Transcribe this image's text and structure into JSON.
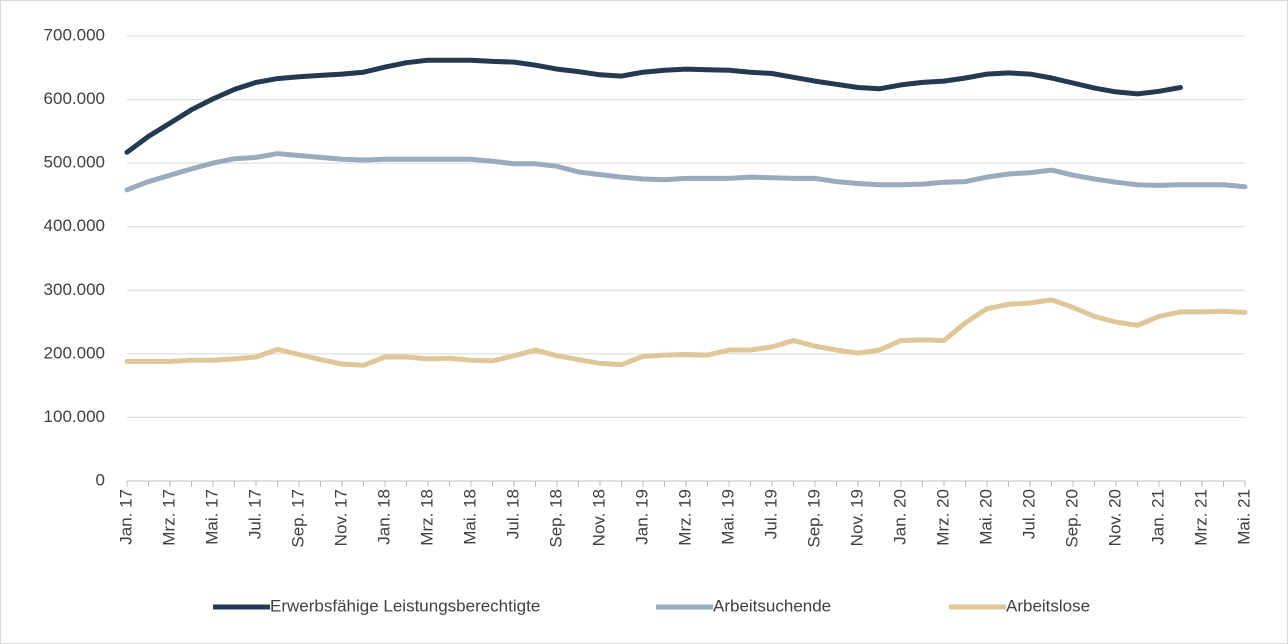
{
  "chart_data": {
    "type": "line",
    "categories": [
      "Jan. 17",
      null,
      "Mrz. 17",
      null,
      "Mai. 17",
      null,
      "Jul. 17",
      null,
      "Sep. 17",
      null,
      "Nov. 17",
      null,
      "Jan. 18",
      null,
      "Mrz. 18",
      null,
      "Mai. 18",
      null,
      "Jul. 18",
      null,
      "Sep. 18",
      null,
      "Nov. 18",
      null,
      "Jan. 19",
      null,
      "Mrz. 19",
      null,
      "Mai. 19",
      null,
      "Jul. 19",
      null,
      "Sep. 19",
      null,
      "Nov. 19",
      null,
      "Jan. 20",
      null,
      "Mrz. 20",
      null,
      "Mai. 20",
      null,
      "Jul. 20",
      null,
      "Sep. 20",
      null,
      "Nov. 20",
      null,
      "Jan. 21",
      null,
      "Mrz. 21",
      null,
      "Mai. 21"
    ],
    "series": [
      {
        "name": "Erwerbsfähige Leistungsberechtigte",
        "color": "#243a52",
        "values": [
          517000,
          542000,
          563000,
          584000,
          601000,
          616000,
          627000,
          633000,
          636000,
          638000,
          640000,
          643000,
          651000,
          658000,
          662000,
          662000,
          662000,
          660000,
          659000,
          654000,
          648000,
          644000,
          639000,
          637000,
          643000,
          646000,
          648000,
          647000,
          646000,
          643000,
          641000,
          635000,
          629000,
          624000,
          619000,
          617000,
          623000,
          627000,
          629000,
          634000,
          640000,
          642000,
          640000,
          634000,
          626000,
          618000,
          612000,
          609000,
          613000,
          619000,
          null,
          null,
          null
        ]
      },
      {
        "name": "Arbeitsuchende",
        "color": "#9aabbd",
        "values": [
          458000,
          471000,
          481000,
          491000,
          500000,
          507000,
          509000,
          515000,
          512000,
          509000,
          506000,
          505000,
          506000,
          506000,
          506000,
          506000,
          506000,
          503000,
          499000,
          499000,
          495000,
          486000,
          482000,
          478000,
          475000,
          474000,
          476000,
          476000,
          476000,
          478000,
          477000,
          476000,
          476000,
          471000,
          468000,
          466000,
          466000,
          467000,
          470000,
          471000,
          478000,
          483000,
          485000,
          489000,
          481000,
          475000,
          470000,
          466000,
          465000,
          466000,
          466000,
          466000,
          463000
        ]
      },
      {
        "name": "Arbeitslose",
        "color": "#e0c79a",
        "values": [
          188000,
          188000,
          188000,
          190000,
          190000,
          192000,
          195000,
          207000,
          199000,
          191000,
          184000,
          182000,
          195000,
          195000,
          192000,
          193000,
          190000,
          189000,
          197000,
          206000,
          197000,
          191000,
          185000,
          183000,
          196000,
          198000,
          199000,
          198000,
          206000,
          206000,
          211000,
          221000,
          212000,
          206000,
          201000,
          206000,
          221000,
          222000,
          221000,
          249000,
          271000,
          278000,
          280000,
          285000,
          273000,
          259000,
          250000,
          245000,
          259000,
          266000,
          266000,
          267000,
          265000
        ]
      }
    ],
    "ylim": [
      0,
      700000
    ],
    "yticks": [
      0,
      {
        "value": 100000,
        "label": "100.000"
      },
      {
        "value": 200000,
        "label": "200.000"
      },
      {
        "value": 300000,
        "label": "300.000"
      },
      {
        "value": 400000,
        "label": "400.000"
      },
      {
        "value": 500000,
        "label": "500.000"
      },
      {
        "value": 600000,
        "label": "600.000"
      },
      {
        "value": 700000,
        "label": "700.000"
      }
    ],
    "grid": true
  }
}
